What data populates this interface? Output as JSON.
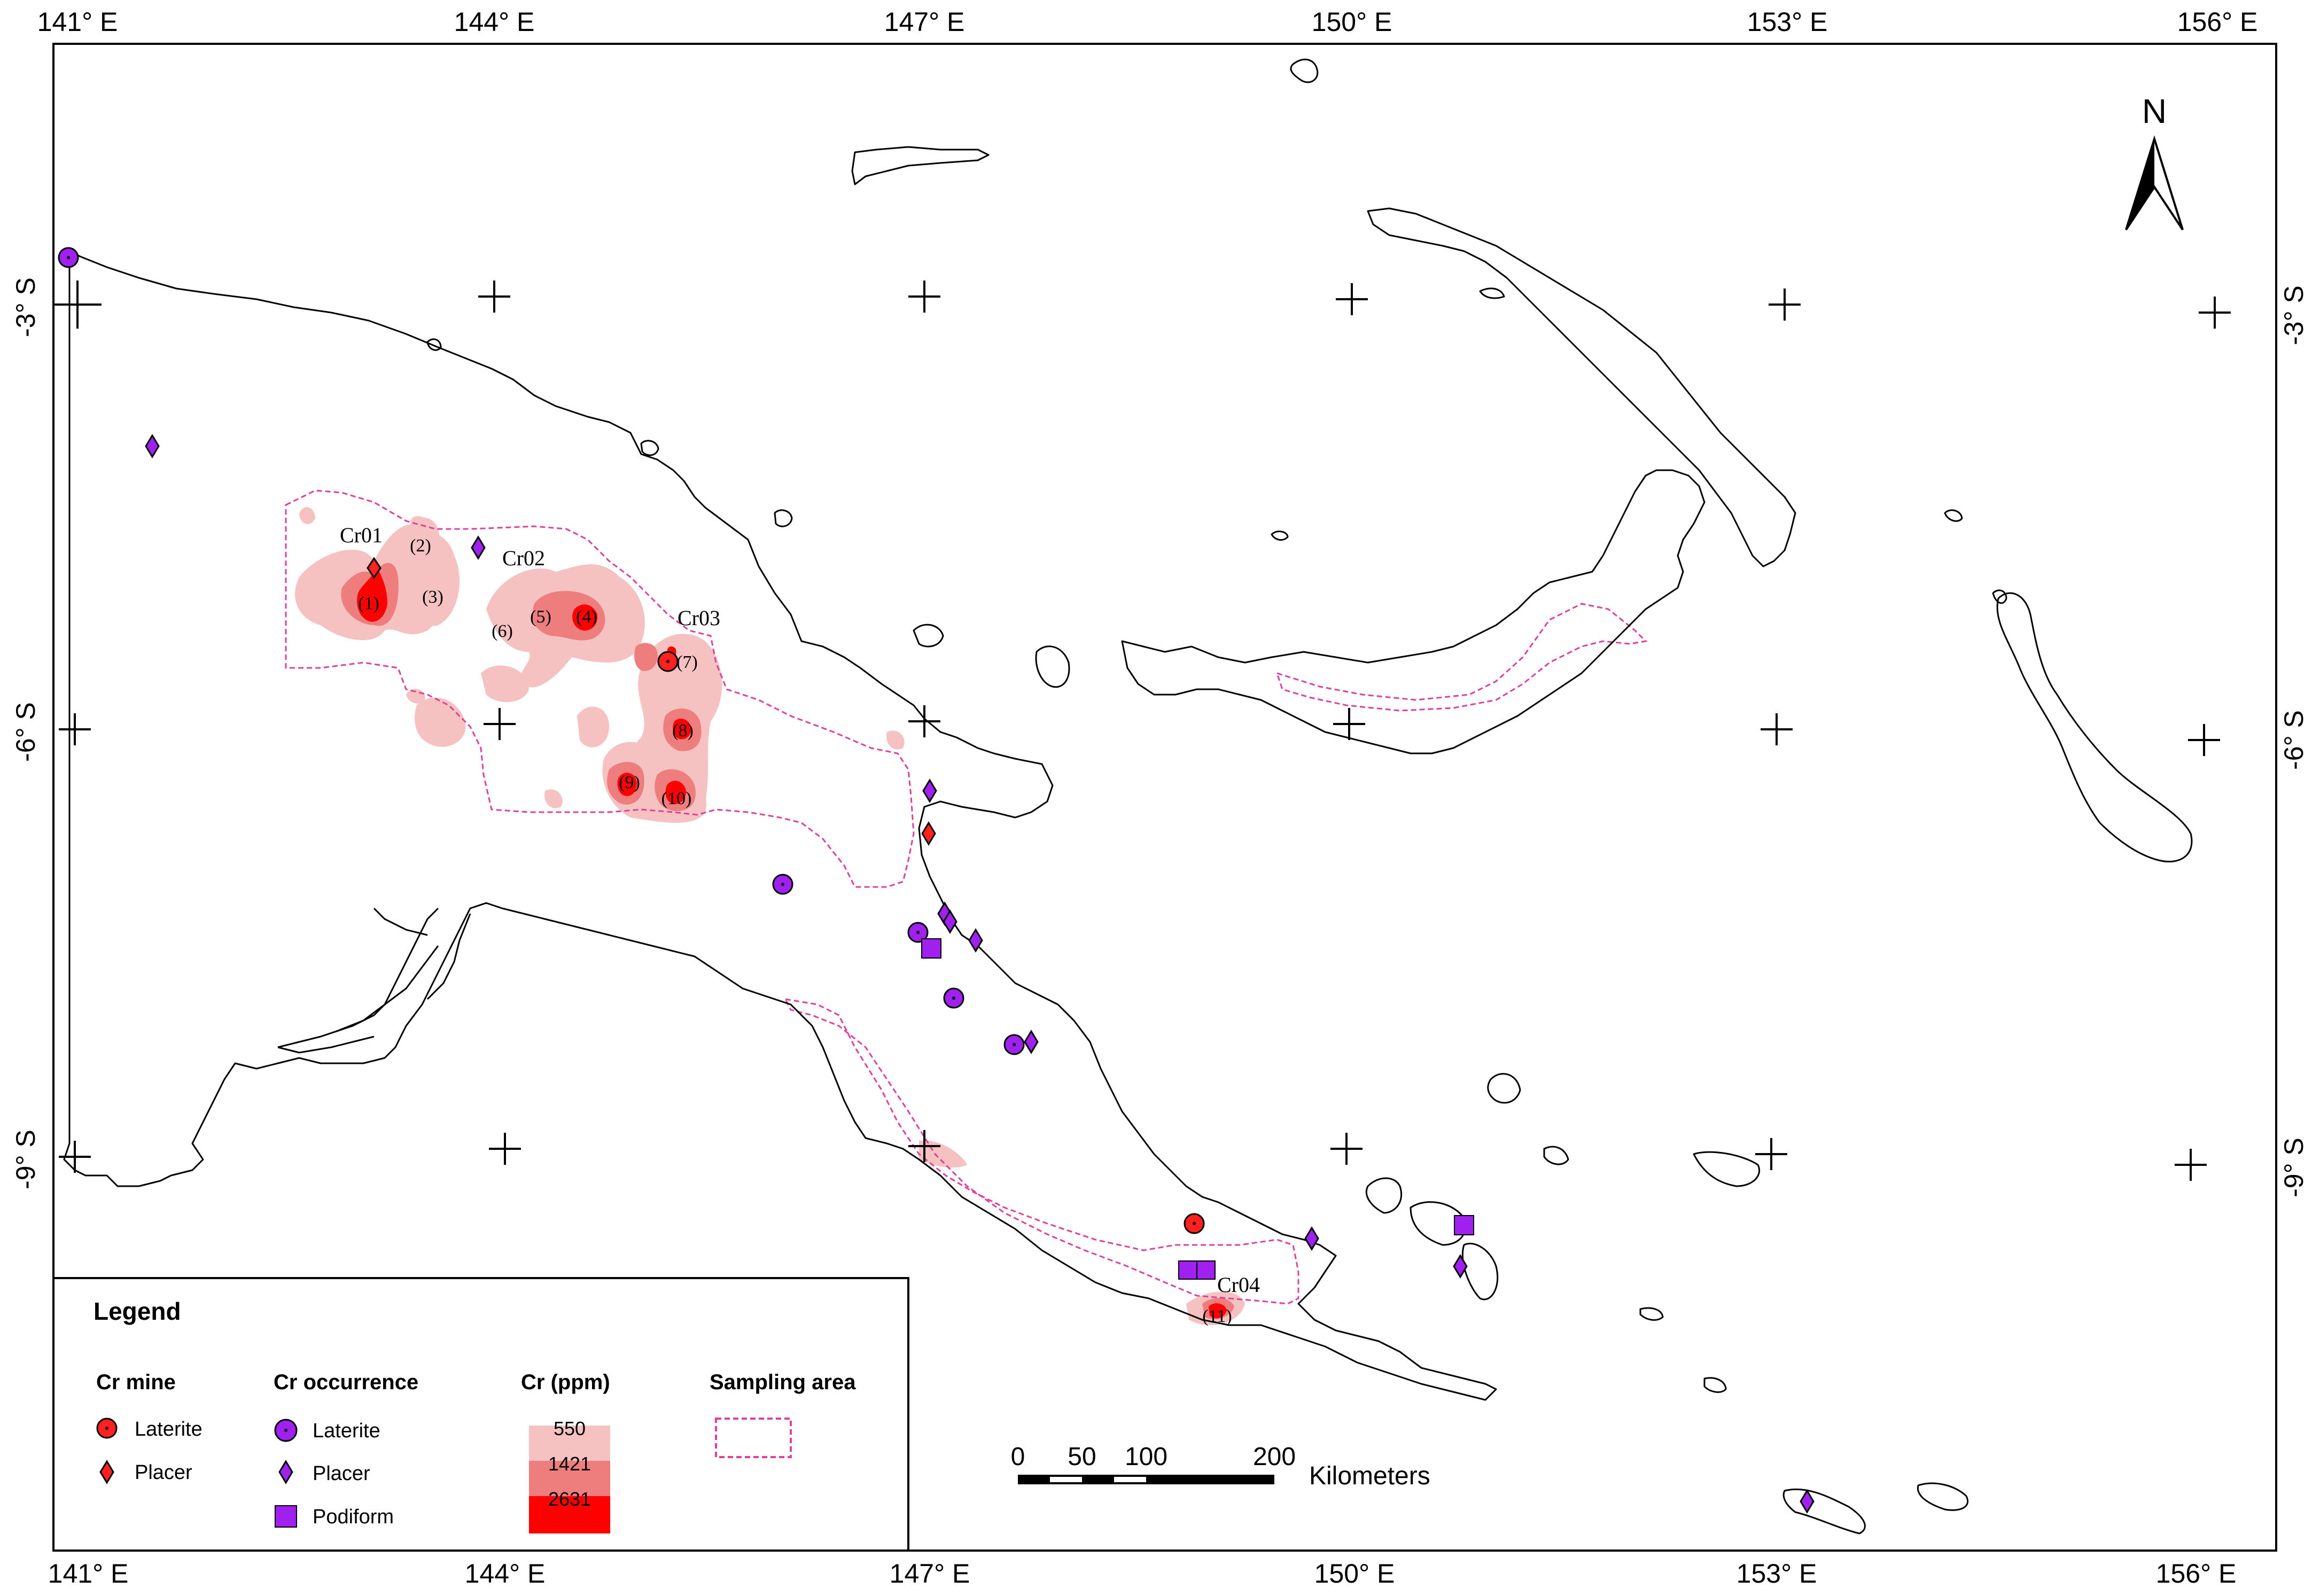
{
  "map": {
    "graticule": {
      "lon_labels": [
        "141° E",
        "144° E",
        "147° E",
        "150° E",
        "153° E",
        "156° E"
      ],
      "lat_labels": [
        "-3° S",
        "-6° S",
        "-9° S"
      ]
    },
    "north_arrow": {
      "label": "N"
    },
    "zone_labels": [
      "Cr01",
      "Cr02",
      "Cr03",
      "Cr04"
    ],
    "number_labels": [
      "(1)",
      "(2)",
      "(3)",
      "(4)",
      "(5)",
      "(6)",
      "(7)",
      "(8)",
      "(9)",
      "(10)",
      "(11)"
    ],
    "scale_bar": {
      "ticks": [
        "0",
        "50",
        "100",
        "200"
      ],
      "unit": "Kilometers"
    },
    "colors": {
      "cr_low": "#f6c1c1",
      "cr_mid": "#ee7d7d",
      "cr_high": "#ff0000",
      "mine_red": "#ff2020",
      "occurrence_purple": "#a020f0",
      "sampling_area": "#e0409a"
    }
  },
  "legend": {
    "title": "Legend",
    "mine": {
      "heading": "Cr mine",
      "items": [
        "Laterite",
        "Placer"
      ]
    },
    "occurrence": {
      "heading": "Cr occurrence",
      "items": [
        "Laterite",
        "Placer",
        "Podiform"
      ]
    },
    "ppm": {
      "heading": "Cr (ppm)",
      "values": [
        "550",
        "1421",
        "2631"
      ]
    },
    "sampling": {
      "heading": "Sampling area"
    }
  }
}
